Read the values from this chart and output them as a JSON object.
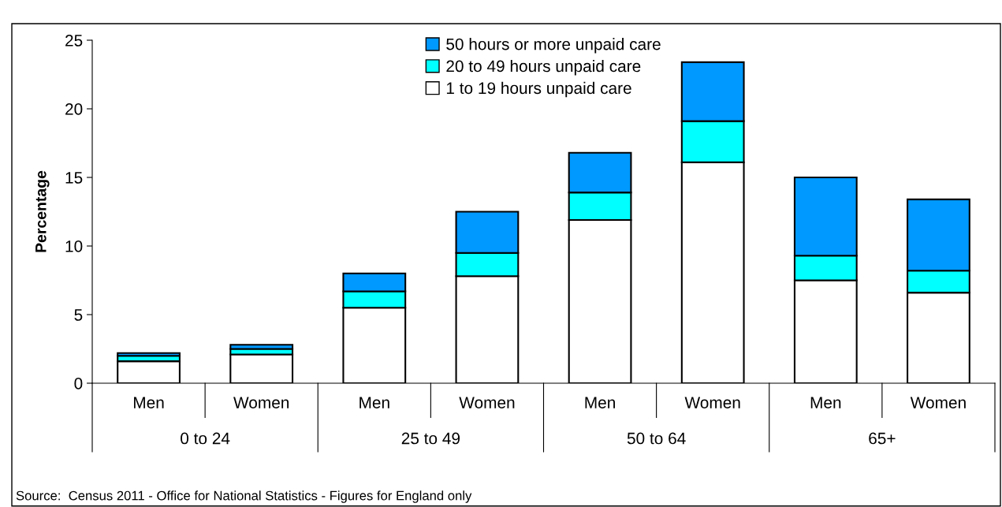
{
  "chart_data": {
    "type": "bar",
    "stacked": true,
    "ylabel": "Percentage",
    "categories": [
      "Men",
      "Women",
      "Men",
      "Women",
      "Men",
      "Women",
      "Men",
      "Women"
    ],
    "series": [
      {
        "name": "1 to 19 hours unpaid care",
        "color": "#ffffff",
        "values": [
          1.6,
          2.1,
          5.5,
          7.8,
          11.9,
          16.1,
          7.5,
          6.6
        ]
      },
      {
        "name": "20 to 49 hours unpaid care",
        "color": "#00ffff",
        "values": [
          0.4,
          0.4,
          1.2,
          1.7,
          2.0,
          3.0,
          1.8,
          1.6
        ]
      },
      {
        "name": "50 hours or more unpaid care",
        "color": "#0099ff",
        "values": [
          0.2,
          0.3,
          1.3,
          3.0,
          2.9,
          4.3,
          5.7,
          5.2
        ]
      }
    ],
    "ylim": [
      0,
      25
    ],
    "yticks": [
      0,
      5,
      10,
      15,
      20,
      25
    ],
    "grid": false,
    "legend": "top",
    "annotations": [
      "0 to 24",
      "25 to 49",
      "50 to 64",
      "65+",
      "Source:  Census 2011 - Office for National Statistics - Figures for England only"
    ]
  }
}
